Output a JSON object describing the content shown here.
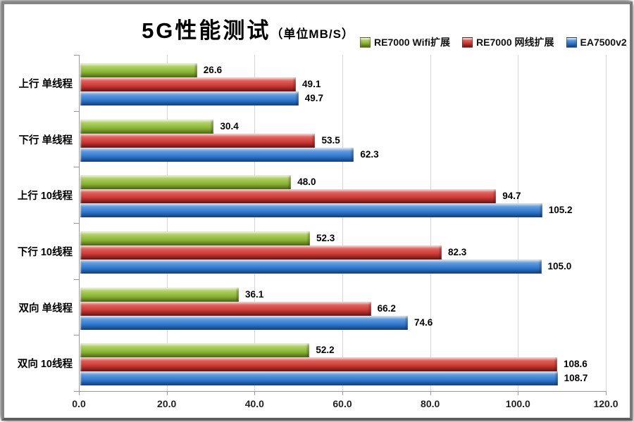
{
  "chart_data": {
    "type": "bar",
    "orientation": "horizontal",
    "title_main": "5G性能测试",
    "title_unit": "（单位MB/S）",
    "categories": [
      "上行 单线程",
      "下行 单线程",
      "上行 10线程",
      "下行 10线程",
      "双向 单线程",
      "双向 10线程"
    ],
    "series": [
      {
        "name": "RE7000 Wifi扩展",
        "color": "#8fb838",
        "gradient": [
          "#d9e9aa",
          "#aacd5c",
          "#8ab434",
          "#6f9627"
        ],
        "values": [
          26.6,
          30.4,
          48.0,
          52.3,
          36.1,
          52.2
        ]
      },
      {
        "name": "RE7000 网线扩展",
        "color": "#cd3a35",
        "gradient": [
          "#f2aba5",
          "#dd5c55",
          "#c93732",
          "#92231f"
        ],
        "values": [
          49.1,
          53.5,
          94.7,
          82.3,
          66.2,
          108.6
        ]
      },
      {
        "name": "EA7500v2",
        "color": "#2f78cd",
        "gradient": [
          "#aecdee",
          "#5b97dd",
          "#2f78cd",
          "#1f5caa"
        ],
        "values": [
          49.7,
          62.3,
          105.2,
          105.0,
          74.6,
          108.7
        ]
      }
    ],
    "xlim": [
      0,
      120
    ],
    "x_ticks": [
      0,
      20,
      40,
      60,
      80,
      100,
      120
    ],
    "x_tick_labels": [
      "0.0",
      "20.0",
      "40.0",
      "60.0",
      "80.0",
      "100.0",
      "120.0"
    ],
    "value_label_decimals": 1,
    "grid": true,
    "legend_position": "top-right"
  }
}
